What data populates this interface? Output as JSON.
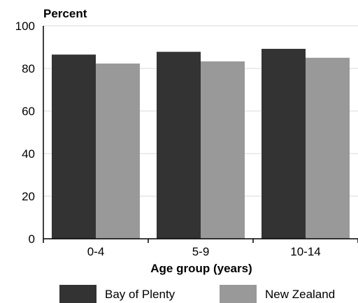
{
  "chart_data": {
    "type": "bar",
    "title": "",
    "ylabel": "Percent",
    "xlabel": "Age group (years)",
    "categories": [
      "0-4",
      "5-9",
      "10-14"
    ],
    "ylim": [
      0,
      100
    ],
    "yticks": [
      0,
      20,
      40,
      60,
      80,
      100
    ],
    "grid": true,
    "legend_position": "bottom",
    "series": [
      {
        "name": "Bay of Plenty",
        "color": "#333333",
        "values": [
          86.5,
          87.8,
          89.2
        ]
      },
      {
        "name": "New Zealand",
        "color": "#999999",
        "values": [
          82.3,
          83.3,
          85.0
        ]
      }
    ]
  }
}
